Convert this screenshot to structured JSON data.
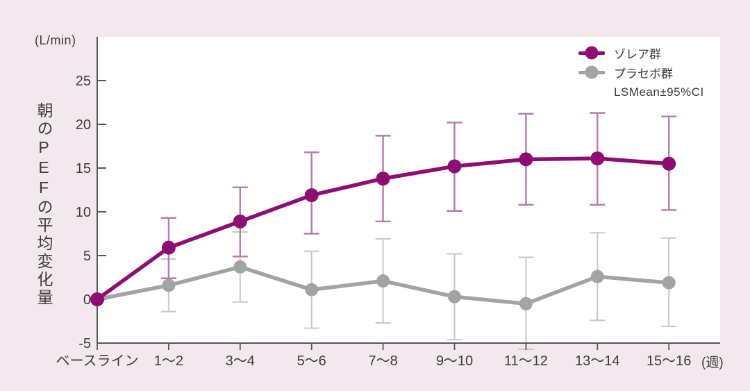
{
  "unit_label": "(L/min)",
  "y_axis_title": "朝のPEFの平均変化量",
  "x_axis_unit_label": "(週)",
  "ci_note": "LSMean±95%CI",
  "colors": {
    "background": "#f4e8ef",
    "plot_background": "#ffffff",
    "axis": "#595757",
    "text": "#3e3a39",
    "zolea": "#8f0d73",
    "zolea_error": "#b57cad",
    "placebo": "#a5a2a3",
    "placebo_error": "#cac7c8"
  },
  "chart_data": {
    "type": "line",
    "title": "",
    "xlabel": "週",
    "ylabel": "朝のPEFの平均変化量 (L/min)",
    "categories": [
      "ベースライン",
      "1〜2",
      "3〜4",
      "5〜6",
      "7〜8",
      "9〜10",
      "11〜12",
      "13〜14",
      "15〜16"
    ],
    "ylim": [
      -5,
      30
    ],
    "yticks": [
      -5,
      0,
      5,
      10,
      15,
      20,
      25
    ],
    "grid": false,
    "legend_position": "top-right",
    "error_bars": "LSMean±95%CI",
    "series": [
      {
        "name": "ゾレア群",
        "color": "#8f0d73",
        "error_color": "#b57cad",
        "values": [
          0,
          5.9,
          8.9,
          11.9,
          13.8,
          15.2,
          16.0,
          16.1,
          15.5
        ],
        "ci_low": [
          0,
          2.4,
          4.9,
          7.5,
          8.9,
          10.1,
          10.8,
          10.8,
          10.2
        ],
        "ci_high": [
          0,
          9.3,
          12.8,
          16.8,
          18.7,
          20.2,
          21.2,
          21.3,
          20.9
        ]
      },
      {
        "name": "プラセボ群",
        "color": "#a5a2a3",
        "error_color": "#cac7c8",
        "values": [
          0,
          1.6,
          3.7,
          1.1,
          2.1,
          0.3,
          -0.5,
          2.6,
          1.9
        ],
        "ci_low": [
          0,
          -1.4,
          -0.3,
          -3.3,
          -2.7,
          -4.6,
          -5.7,
          -2.4,
          -3.1
        ],
        "ci_high": [
          0,
          4.6,
          7.7,
          5.5,
          6.9,
          5.2,
          4.8,
          7.6,
          7.0
        ]
      }
    ]
  }
}
